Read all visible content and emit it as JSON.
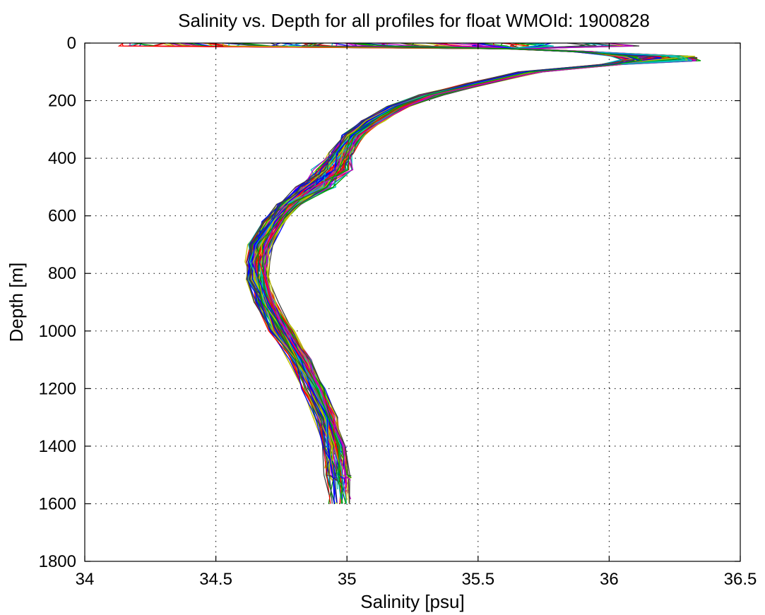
{
  "chart_data": {
    "type": "line",
    "title": "Salinity vs. Depth for all profiles for float WMOId: 1900828",
    "xlabel": "Salinity [psu]",
    "ylabel": "Depth [m]",
    "xlim": [
      34,
      36.5
    ],
    "ylim": [
      0,
      1800
    ],
    "y_reversed": true,
    "grid": true,
    "x_ticks": [
      "34",
      "34.5",
      "35",
      "35.5",
      "36",
      "36.5"
    ],
    "y_ticks": [
      "0",
      "200",
      "400",
      "600",
      "800",
      "1000",
      "1200",
      "1400",
      "1600",
      "1800"
    ],
    "series_count": 100,
    "colors": [
      "#0000ff",
      "#00a000",
      "#ff0000",
      "#00c0c0",
      "#c000c0",
      "#c0c000",
      "#404040"
    ],
    "representative_profile": {
      "depth": [
        0,
        10,
        20,
        30,
        45,
        60,
        75,
        100,
        140,
        180,
        220,
        270,
        320,
        380,
        440,
        500,
        560,
        620,
        700,
        760,
        820,
        900,
        1000,
        1100,
        1200,
        1300,
        1400,
        1500,
        1600
      ],
      "salinity": [
        35.5,
        35.55,
        35.65,
        35.9,
        36.2,
        36.25,
        36.0,
        35.7,
        35.5,
        35.32,
        35.2,
        35.1,
        35.02,
        34.98,
        34.95,
        34.88,
        34.78,
        34.72,
        34.67,
        34.66,
        34.66,
        34.69,
        34.75,
        34.82,
        34.87,
        34.92,
        34.95,
        34.96,
        34.975
      ]
    }
  }
}
